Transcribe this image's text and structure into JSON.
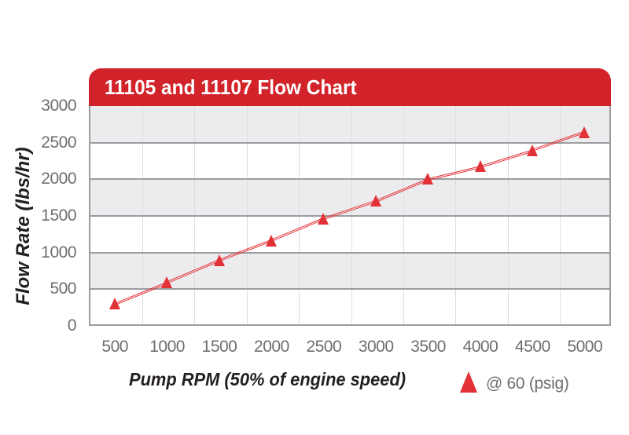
{
  "header": {
    "title": "11105 and 11107 Flow Chart"
  },
  "legend": {
    "label": "@ 60 (psig)",
    "marker": "triangle-up"
  },
  "colors": {
    "banner_red": "#d2232a",
    "series_red": "#e23137",
    "band_gray": "#ececee",
    "major_grid_gray": "#9b9da0",
    "minor_grid_gray": "#dcdddf",
    "tick_text_gray": "#6d6e71",
    "axis_title_black": "#231f20"
  },
  "chart_data": {
    "type": "line",
    "title": "11105 and 11107 Flow Chart",
    "xlabel": "Pump RPM (50% of engine speed)",
    "ylabel": "Flow Rate (lbs/hr)",
    "categories": [
      500,
      1000,
      1500,
      2000,
      2500,
      3000,
      3500,
      4000,
      4500,
      5000
    ],
    "series": [
      {
        "name": "@ 60 (psig)",
        "marker": "triangle-up",
        "color": "#e23137",
        "values": [
          300,
          590,
          890,
          1160,
          1460,
          1700,
          2000,
          2170,
          2390,
          2640
        ]
      }
    ],
    "ylim": [
      0,
      3000
    ],
    "ytick_step": 500,
    "grid": "alternating-horizontal-bands-with-vertical-minor-lines",
    "legend_position": "bottom-right"
  }
}
